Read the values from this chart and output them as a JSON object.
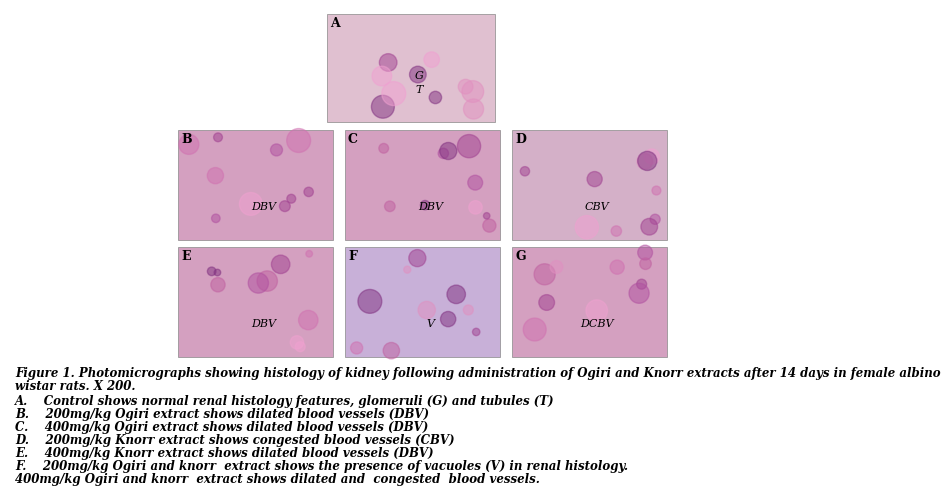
{
  "title_line1": "Figure 1. Photomicrographs showing histology of kidney following administration of Ogiri and Knorr extracts after 14 days in female albino",
  "title_line2": "wistar rats. X 200.",
  "captions": [
    "A.    Control shows normal renal histology features, glomeruli (G) and tubules (T)",
    "B.    200mg/kg Ogiri extract shows dilated blood vessels (DBV)",
    "C.    400mg/kg Ogiri extract shows dilated blood vessels (DBV)",
    "D.    200mg/kg Knorr extract shows congested blood vessels (CBV)",
    "E.    400mg/kg Knorr extract shows dilated blood vessels (DBV)",
    "F.    200mg/kg Ogiri and knorr  extract shows the presence of vacuoles (V) in renal histology.",
    "400mg/kg Ogiri and knorr  extract shows dilated and  congested  blood vessels."
  ],
  "panel_sublabels": {
    "A": [
      "G",
      "T"
    ],
    "B": [
      "DBV"
    ],
    "C": [
      "DBV"
    ],
    "D": [
      "CBV"
    ],
    "E": [
      "DBV"
    ],
    "F": [
      "V"
    ],
    "G": [
      "DCBV"
    ]
  },
  "bg_color": "#ffffff",
  "panel_bg_colors": {
    "A": "#e0c0d0",
    "B": "#d4a0c0",
    "C": "#d4a0c0",
    "D": "#d4b0c8",
    "E": "#d4a0c0",
    "F": "#c8b0d8",
    "G": "#d4a0c0"
  },
  "text_color": "#000000",
  "caption_fontsize": 8.5,
  "label_fontsize": 9,
  "sublabel_fontsize": 8,
  "texture_colors": [
    "#c060a0",
    "#b050a0",
    "#d070b0",
    "#a04090",
    "#e090c0",
    "#803080",
    "#f0a0d0"
  ]
}
